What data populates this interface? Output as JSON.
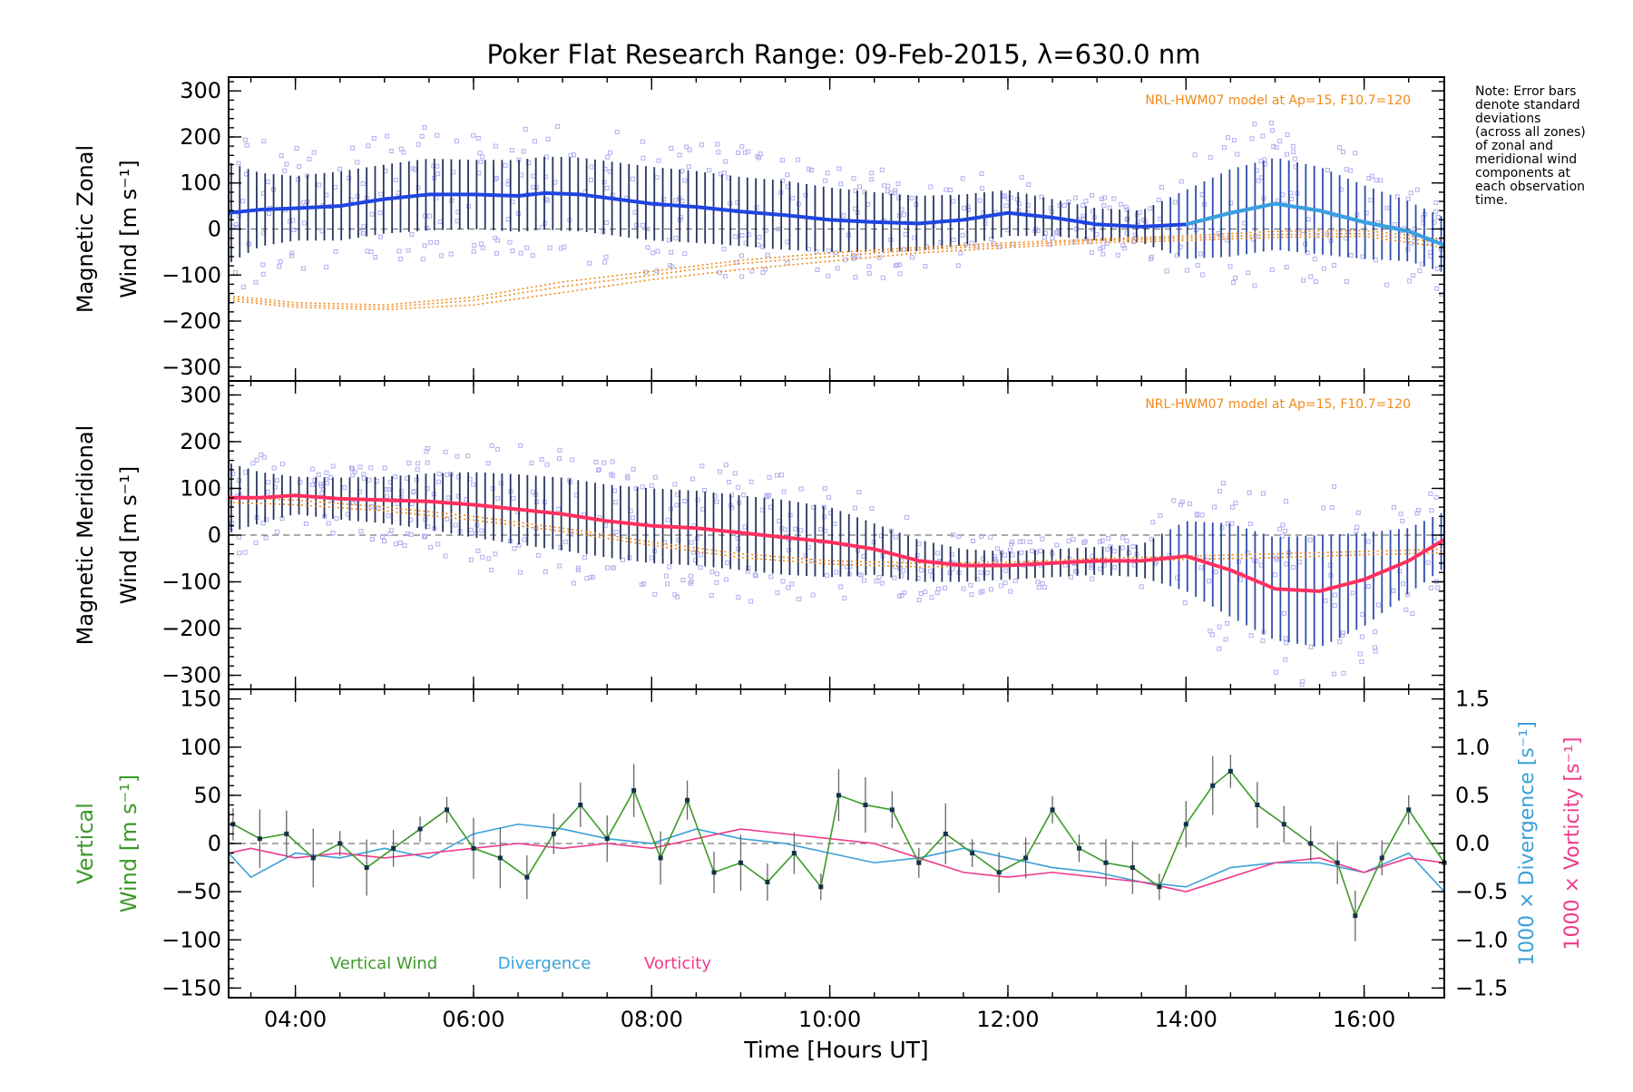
{
  "title": "Poker Flat Research Range: 09-Feb-2015, λ=630.0 nm",
  "note": "Note: Error bars\ndenote standard\ndeviations\n(across all zones)\nof zonal and\nmeridional wind\ncomponents at\neach observation\ntime.",
  "colors": {
    "zonal_mean": "#1f45e0",
    "zonal_mean_late": "#3aa0e0",
    "meridional_mean": "#ff3060",
    "model": "#f08a1a",
    "scatter": "#b0aef0",
    "vertical": "#3d9a2a",
    "divergence": "#3aa0d8",
    "vorticity": "#f03a8a"
  },
  "chart_data": [
    {
      "type": "line",
      "panel": "zonal",
      "ylabel": "Magnetic Zonal\nWind [m s⁻¹]",
      "ylim": [
        -330,
        330
      ],
      "yticks": [
        300,
        200,
        100,
        0,
        -100,
        -200,
        -300
      ],
      "xlim": [
        3.25,
        16.9
      ],
      "model_label": "NRL-HWM07 model at Ap=15, F10.7=120",
      "series": [
        {
          "role": "mean",
          "x": [
            3.25,
            3.6,
            4.0,
            4.5,
            5.0,
            5.5,
            6.0,
            6.5,
            6.8,
            7.2,
            7.6,
            8.0,
            8.5,
            9.0,
            9.5,
            10.0,
            10.5,
            11.0,
            11.5,
            12.0,
            12.5,
            13.0,
            13.5,
            14.0,
            14.5,
            15.0,
            15.5,
            16.0,
            16.5,
            16.9
          ],
          "y": [
            35,
            42,
            45,
            50,
            65,
            75,
            75,
            72,
            78,
            75,
            65,
            55,
            48,
            38,
            30,
            20,
            15,
            12,
            20,
            35,
            25,
            10,
            5,
            10,
            35,
            55,
            40,
            15,
            -5,
            -35
          ]
        },
        {
          "role": "spread",
          "x": [
            3.25,
            3.6,
            4.0,
            4.5,
            5.0,
            5.5,
            6.0,
            6.5,
            7.0,
            7.5,
            8.0,
            8.5,
            9.0,
            9.5,
            10.0,
            10.5,
            11.0,
            11.5,
            12.0,
            12.5,
            13.0,
            13.5,
            14.0,
            14.5,
            15.0,
            15.5,
            16.0,
            16.5,
            16.9
          ],
          "y": [
            110,
            80,
            70,
            75,
            75,
            78,
            75,
            78,
            80,
            80,
            80,
            78,
            75,
            75,
            70,
            65,
            60,
            55,
            50,
            40,
            35,
            35,
            75,
            95,
            100,
            95,
            80,
            65,
            60
          ]
        },
        {
          "role": "model",
          "x": [
            3.25,
            4.0,
            5.0,
            6.0,
            7.0,
            8.0,
            9.0,
            10.0,
            11.0,
            12.0,
            13.0,
            14.0,
            15.0,
            16.0,
            16.9
          ],
          "y": [
            -150,
            -165,
            -170,
            -155,
            -125,
            -100,
            -75,
            -60,
            -45,
            -35,
            -25,
            -20,
            -12,
            -10,
            -30
          ]
        },
        {
          "role": "model",
          "x": [
            3.25,
            4.0,
            5.0,
            6.0,
            7.0,
            8.0,
            9.0,
            10.0,
            11.0,
            12.0,
            13.0,
            14.0,
            15.0,
            16.0,
            16.9
          ],
          "y": [
            -155,
            -170,
            -175,
            -165,
            -138,
            -110,
            -88,
            -70,
            -52,
            -40,
            -30,
            -25,
            -18,
            -16,
            -40
          ]
        },
        {
          "role": "model",
          "x": [
            3.25,
            4.0,
            5.0,
            6.0,
            7.0,
            8.0,
            9.0,
            10.0,
            11.0,
            12.0,
            13.0,
            14.0,
            15.0,
            16.0,
            16.9
          ],
          "y": [
            -145,
            -160,
            -165,
            -148,
            -115,
            -92,
            -68,
            -52,
            -40,
            -30,
            -22,
            -15,
            -5,
            -3,
            -22
          ]
        }
      ]
    },
    {
      "type": "line",
      "panel": "meridional",
      "ylabel": "Magnetic Meridional\nWind [m s⁻¹]",
      "ylim": [
        -330,
        330
      ],
      "yticks": [
        300,
        200,
        100,
        0,
        -100,
        -200,
        -300
      ],
      "xlim": [
        3.25,
        16.9
      ],
      "model_label": "NRL-HWM07 model at Ap=15, F10.7=120",
      "series": [
        {
          "role": "mean",
          "x": [
            3.25,
            3.6,
            4.0,
            4.5,
            5.0,
            5.5,
            6.0,
            6.5,
            7.0,
            7.5,
            8.0,
            8.5,
            9.0,
            9.5,
            10.0,
            10.5,
            11.0,
            11.5,
            12.0,
            12.5,
            13.0,
            13.5,
            14.0,
            14.5,
            15.0,
            15.5,
            16.0,
            16.5,
            16.9
          ],
          "y": [
            80,
            80,
            85,
            78,
            75,
            72,
            65,
            55,
            45,
            30,
            20,
            15,
            5,
            -5,
            -15,
            -30,
            -55,
            -65,
            -65,
            -60,
            -55,
            -55,
            -45,
            -75,
            -115,
            -120,
            -95,
            -55,
            -10
          ]
        },
        {
          "role": "spread",
          "x": [
            3.25,
            3.6,
            4.0,
            4.5,
            5.0,
            5.5,
            6.0,
            6.5,
            7.0,
            7.5,
            8.0,
            8.5,
            9.0,
            9.5,
            10.0,
            10.5,
            11.0,
            11.5,
            12.0,
            12.5,
            13.0,
            13.5,
            14.0,
            14.5,
            15.0,
            15.5,
            16.0,
            16.5,
            16.9
          ],
          "y": [
            75,
            55,
            40,
            45,
            50,
            60,
            70,
            75,
            78,
            78,
            80,
            80,
            80,
            80,
            75,
            55,
            45,
            35,
            30,
            30,
            30,
            35,
            75,
            100,
            110,
            120,
            100,
            70,
            60
          ]
        },
        {
          "role": "model",
          "x": [
            3.25,
            4.0,
            5.0,
            6.0,
            7.0,
            8.0,
            9.0,
            10.0,
            11.0,
            12.0,
            13.0,
            14.0,
            15.0,
            16.0,
            16.9
          ],
          "y": [
            80,
            75,
            60,
            40,
            15,
            -15,
            -40,
            -55,
            -60,
            -58,
            -50,
            -45,
            -40,
            -35,
            -30
          ]
        },
        {
          "role": "model",
          "x": [
            3.25,
            4.0,
            5.0,
            6.0,
            7.0,
            8.0,
            9.0,
            10.0,
            11.0,
            12.0,
            13.0,
            14.0,
            15.0,
            16.0,
            16.9
          ],
          "y": [
            70,
            65,
            52,
            32,
            8,
            -22,
            -48,
            -62,
            -68,
            -65,
            -58,
            -52,
            -48,
            -42,
            -38
          ]
        }
      ]
    },
    {
      "type": "line",
      "panel": "vertical",
      "ylabel_left": [
        "Vertical",
        "Wind [m s⁻¹]"
      ],
      "ylabel_right_div": "1000 × Divergence [s⁻¹]",
      "ylabel_right_vor": "1000 × Vorticity [s⁻¹]",
      "ylim": [
        -160,
        160
      ],
      "yticks": [
        150,
        100,
        50,
        0,
        -50,
        -100,
        -150
      ],
      "y2lim": [
        -1.6,
        1.6
      ],
      "y2ticks": [
        1.5,
        1.0,
        0.5,
        0.0,
        -0.5,
        -1.0,
        -1.5
      ],
      "y2tick_labels": [
        "1.5",
        "1.0",
        "0.5",
        "0.0",
        "−0.5",
        "−1.0",
        "−1.5"
      ],
      "xlim": [
        3.25,
        16.9
      ],
      "xticks": [
        4,
        6,
        8,
        10,
        12,
        14,
        16
      ],
      "xtick_labels": [
        "04:00",
        "06:00",
        "08:00",
        "10:00",
        "12:00",
        "14:00",
        "16:00"
      ],
      "xlabel": "Time [Hours UT]",
      "legend": [
        "Vertical Wind",
        "Divergence",
        "Vorticity"
      ],
      "series": [
        {
          "name": "Vertical Wind",
          "x": [
            3.3,
            3.6,
            3.9,
            4.2,
            4.5,
            4.8,
            5.1,
            5.4,
            5.7,
            6.0,
            6.3,
            6.6,
            6.9,
            7.2,
            7.5,
            7.8,
            8.1,
            8.4,
            8.7,
            9.0,
            9.3,
            9.6,
            9.9,
            10.1,
            10.4,
            10.7,
            11.0,
            11.3,
            11.6,
            11.9,
            12.2,
            12.5,
            12.8,
            13.1,
            13.4,
            13.7,
            14.0,
            14.3,
            14.5,
            14.8,
            15.1,
            15.4,
            15.7,
            15.9,
            16.2,
            16.5,
            16.9
          ],
          "y": [
            20,
            5,
            10,
            -15,
            0,
            -25,
            -5,
            15,
            35,
            -5,
            -15,
            -35,
            10,
            40,
            5,
            55,
            -15,
            45,
            -30,
            -20,
            -40,
            -10,
            -45,
            50,
            40,
            35,
            -20,
            10,
            -10,
            -30,
            -15,
            35,
            -5,
            -20,
            -25,
            -45,
            20,
            60,
            75,
            40,
            20,
            0,
            -20,
            -75,
            -15,
            35,
            -20
          ]
        },
        {
          "name": "Divergence",
          "x": [
            3.25,
            3.5,
            4.0,
            4.5,
            5.0,
            5.5,
            6.0,
            6.5,
            7.0,
            7.5,
            8.0,
            8.5,
            9.0,
            9.5,
            10.0,
            10.5,
            11.0,
            11.5,
            12.0,
            12.5,
            13.0,
            13.5,
            14.0,
            14.5,
            15.0,
            15.5,
            16.0,
            16.5,
            16.9
          ],
          "y": [
            -0.1,
            -0.35,
            -0.1,
            -0.15,
            -0.05,
            -0.15,
            0.1,
            0.2,
            0.15,
            0.05,
            0.0,
            0.15,
            0.05,
            0.0,
            -0.1,
            -0.2,
            -0.15,
            -0.05,
            -0.15,
            -0.25,
            -0.3,
            -0.4,
            -0.45,
            -0.25,
            -0.2,
            -0.2,
            -0.3,
            -0.1,
            -0.5
          ]
        },
        {
          "name": "Vorticity",
          "x": [
            3.25,
            3.5,
            4.0,
            4.5,
            5.0,
            5.5,
            6.0,
            6.5,
            7.0,
            7.5,
            8.0,
            8.5,
            9.0,
            9.5,
            10.0,
            10.5,
            11.0,
            11.5,
            12.0,
            12.5,
            13.0,
            13.5,
            14.0,
            14.5,
            15.0,
            15.5,
            16.0,
            16.5,
            16.9
          ],
          "y": [
            -0.1,
            -0.05,
            -0.15,
            -0.1,
            -0.15,
            -0.1,
            -0.05,
            0.0,
            -0.05,
            0.0,
            -0.05,
            0.05,
            0.15,
            0.1,
            0.05,
            0.0,
            -0.15,
            -0.3,
            -0.35,
            -0.3,
            -0.35,
            -0.4,
            -0.5,
            -0.35,
            -0.2,
            -0.15,
            -0.3,
            -0.15,
            -0.2
          ]
        }
      ]
    }
  ]
}
